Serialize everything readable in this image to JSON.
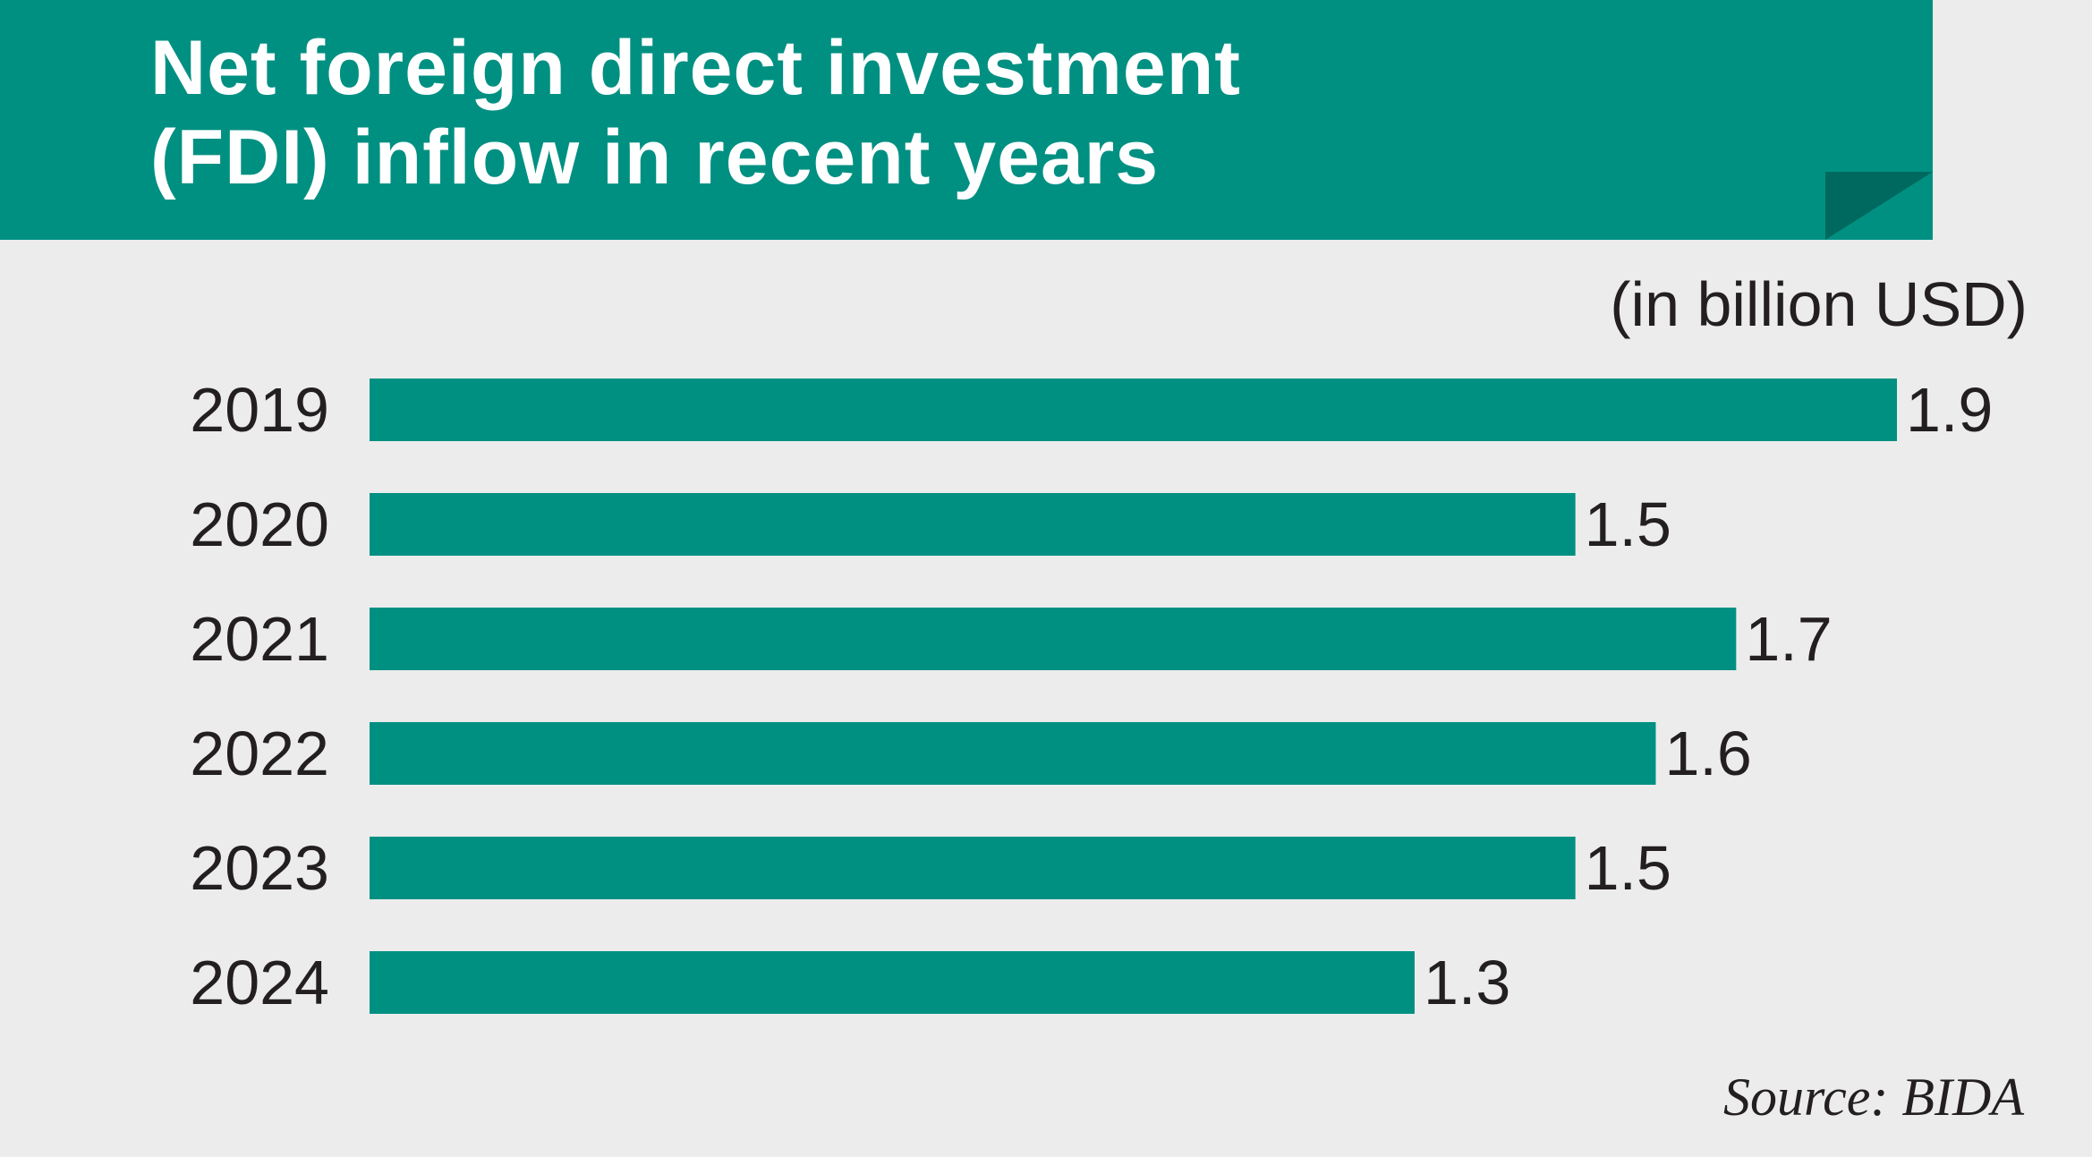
{
  "title_line1": "Net foreign direct investment",
  "title_line2": "(FDI) inflow in recent years",
  "unit": "(in billion USD)",
  "source": "Source: BIDA",
  "colors": {
    "banner": "#009082",
    "banner_fold": "#00695f",
    "bar": "#009082",
    "text": "#231f20",
    "background": "#ececec"
  },
  "chart_data": {
    "type": "bar",
    "orientation": "horizontal",
    "categories": [
      "2019",
      "2020",
      "2021",
      "2022",
      "2023",
      "2024"
    ],
    "values": [
      1.9,
      1.5,
      1.7,
      1.6,
      1.5,
      1.3
    ],
    "value_labels": [
      "1.9",
      "1.5",
      "1.7",
      "1.6",
      "1.5",
      "1.3"
    ],
    "title": "Net foreign direct investment (FDI) inflow in recent years",
    "unit": "(in billion USD)",
    "xlim": [
      0,
      1.9
    ],
    "grid": false,
    "legend": "none"
  }
}
